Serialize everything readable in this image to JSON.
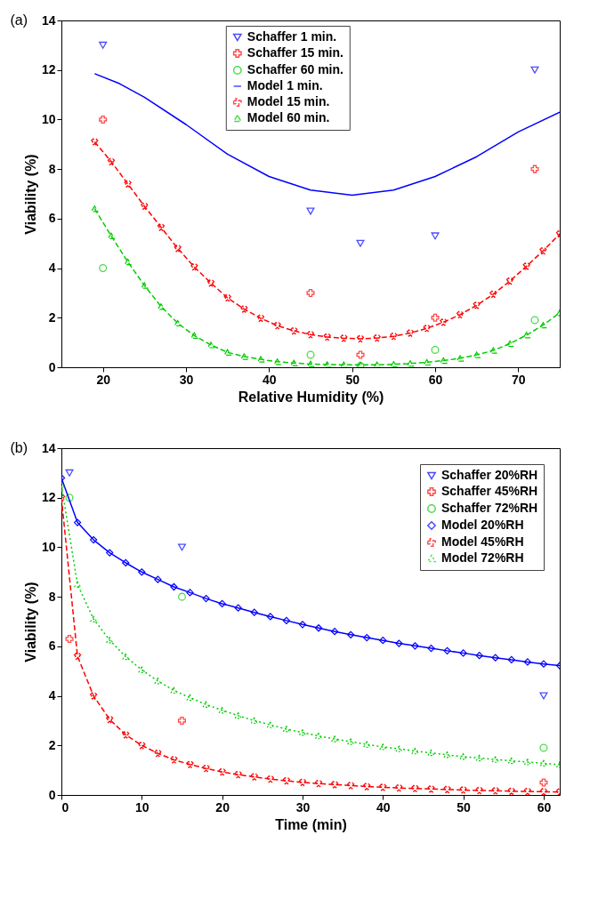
{
  "chart_data": [
    {
      "type": "line",
      "annotations": [
        "(a)"
      ],
      "xlabel": "Relative Humidity (%)",
      "ylabel": "Viability (%)",
      "xlim": [
        15,
        75
      ],
      "ylim": [
        0,
        14
      ],
      "xticks": [
        20,
        30,
        40,
        50,
        60,
        70
      ],
      "yticks": [
        0,
        2,
        4,
        6,
        8,
        10,
        12,
        14
      ],
      "grid": false,
      "legend": "top",
      "series": [
        {
          "name": "Schaffer 1 min.",
          "type": "scatter",
          "color": "#0000ff",
          "marker": "triangle",
          "x": [
            20,
            45,
            51,
            60,
            72
          ],
          "values": [
            13,
            6.3,
            5,
            5.3,
            12
          ]
        },
        {
          "name": "Schaffer 15 min.",
          "type": "scatter",
          "color": "#ff0000",
          "marker": "cross",
          "x": [
            20,
            45,
            51,
            60,
            72
          ],
          "values": [
            10,
            3,
            0.5,
            2,
            8
          ]
        },
        {
          "name": "Schaffer 60 min.",
          "type": "scatter",
          "color": "#00cc00",
          "marker": "circle",
          "x": [
            20,
            45,
            51,
            60,
            72
          ],
          "values": [
            4,
            0.5,
            0.05,
            0.7,
            1.9
          ]
        },
        {
          "name": "Model 1 min.",
          "color": "#0000ff",
          "marker": "none",
          "line_style": "solid",
          "x": [
            19,
            22,
            25,
            30,
            35,
            40,
            45,
            50,
            55,
            60,
            65,
            70,
            75
          ],
          "values": [
            11.85,
            11.45,
            10.9,
            9.8,
            8.6,
            7.7,
            7.15,
            6.95,
            7.15,
            7.7,
            8.5,
            9.5,
            10.3
          ]
        },
        {
          "name": "Model 15 min.",
          "color": "#ff0000",
          "marker": "cross",
          "line_style": "dashed",
          "x": [
            19,
            21,
            23,
            25,
            27,
            29,
            31,
            33,
            35,
            37,
            39,
            41,
            43,
            45,
            47,
            49,
            51,
            53,
            55,
            57,
            59,
            61,
            63,
            65,
            67,
            69,
            71,
            73,
            75
          ],
          "values": [
            9.1,
            8.3,
            7.4,
            6.5,
            5.65,
            4.8,
            4.05,
            3.4,
            2.8,
            2.35,
            1.98,
            1.68,
            1.47,
            1.32,
            1.22,
            1.17,
            1.15,
            1.18,
            1.25,
            1.38,
            1.57,
            1.82,
            2.12,
            2.5,
            2.95,
            3.48,
            4.08,
            4.7,
            5.38
          ]
        },
        {
          "name": "Model 60 min.",
          "color": "#00cc00",
          "marker": "triangle",
          "line_style": "dashed",
          "x": [
            19,
            21,
            23,
            25,
            27,
            29,
            31,
            33,
            35,
            37,
            39,
            41,
            43,
            45,
            47,
            49,
            51,
            53,
            55,
            57,
            59,
            61,
            63,
            65,
            67,
            69,
            71,
            73,
            75
          ],
          "values": [
            6.4,
            5.3,
            4.25,
            3.3,
            2.45,
            1.78,
            1.28,
            0.9,
            0.6,
            0.43,
            0.32,
            0.22,
            0.17,
            0.13,
            0.11,
            0.1,
            0.1,
            0.1,
            0.12,
            0.15,
            0.2,
            0.27,
            0.36,
            0.5,
            0.68,
            0.95,
            1.3,
            1.7,
            2.2
          ]
        }
      ]
    },
    {
      "type": "line",
      "annotations": [
        "(b)"
      ],
      "xlabel": "Time (min)",
      "ylabel": "Viability (%)",
      "xlim": [
        0,
        62
      ],
      "ylim": [
        0,
        14
      ],
      "xticks": [
        0,
        10,
        20,
        30,
        40,
        50,
        60
      ],
      "yticks": [
        0,
        2,
        4,
        6,
        8,
        10,
        12,
        14
      ],
      "grid": false,
      "legend": "top right",
      "series": [
        {
          "name": "Schaffer 20%RH",
          "type": "scatter",
          "color": "#0000ff",
          "marker": "triangle",
          "x": [
            1,
            15,
            60
          ],
          "values": [
            13,
            10,
            4
          ]
        },
        {
          "name": "Schaffer 45%RH",
          "type": "scatter",
          "color": "#ff0000",
          "marker": "cross",
          "x": [
            1,
            15,
            60
          ],
          "values": [
            6.3,
            3,
            0.5
          ]
        },
        {
          "name": "Schaffer 72%RH",
          "type": "scatter",
          "color": "#00cc00",
          "marker": "circle",
          "x": [
            1,
            15,
            60
          ],
          "values": [
            12,
            8,
            1.9
          ]
        },
        {
          "name": "Model 20%RH",
          "color": "#0000ff",
          "marker": "diamond",
          "line_style": "solid",
          "x": [
            0,
            2,
            4,
            6,
            8,
            10,
            12,
            14,
            16,
            18,
            20,
            22,
            24,
            26,
            28,
            30,
            32,
            34,
            36,
            38,
            40,
            42,
            44,
            46,
            48,
            50,
            52,
            54,
            56,
            58,
            60,
            62
          ],
          "values": [
            12.8,
            11.0,
            10.3,
            9.78,
            9.37,
            9.0,
            8.7,
            8.4,
            8.17,
            7.93,
            7.72,
            7.55,
            7.37,
            7.2,
            7.04,
            6.88,
            6.74,
            6.6,
            6.47,
            6.35,
            6.24,
            6.12,
            6.02,
            5.92,
            5.82,
            5.73,
            5.63,
            5.54,
            5.46,
            5.37,
            5.29,
            5.22
          ]
        },
        {
          "name": "Model 45%RH",
          "color": "#ff0000",
          "marker": "cross",
          "line_style": "dashed",
          "x": [
            0,
            2,
            4,
            6,
            8,
            10,
            12,
            14,
            16,
            18,
            20,
            22,
            24,
            26,
            28,
            30,
            32,
            34,
            36,
            38,
            40,
            42,
            44,
            46,
            48,
            50,
            52,
            54,
            56,
            58,
            60,
            62
          ],
          "values": [
            12.0,
            5.6,
            4.0,
            3.05,
            2.43,
            2.0,
            1.68,
            1.42,
            1.23,
            1.07,
            0.93,
            0.82,
            0.73,
            0.64,
            0.57,
            0.51,
            0.46,
            0.42,
            0.38,
            0.34,
            0.31,
            0.28,
            0.26,
            0.24,
            0.22,
            0.2,
            0.18,
            0.17,
            0.15,
            0.14,
            0.13,
            0.12
          ]
        },
        {
          "name": "Model 72%RH",
          "color": "#00cc00",
          "marker": "triangle",
          "line_style": "dotted",
          "x": [
            0,
            2,
            4,
            6,
            8,
            10,
            12,
            14,
            16,
            18,
            20,
            22,
            24,
            26,
            28,
            30,
            32,
            34,
            36,
            38,
            40,
            42,
            44,
            46,
            48,
            50,
            52,
            54,
            56,
            58,
            60,
            62
          ],
          "values": [
            12.5,
            8.5,
            7.1,
            6.25,
            5.58,
            5.05,
            4.6,
            4.22,
            3.93,
            3.65,
            3.42,
            3.2,
            3.0,
            2.83,
            2.66,
            2.52,
            2.38,
            2.26,
            2.15,
            2.04,
            1.94,
            1.86,
            1.77,
            1.7,
            1.62,
            1.55,
            1.49,
            1.43,
            1.38,
            1.33,
            1.28,
            1.22
          ]
        }
      ]
    }
  ]
}
